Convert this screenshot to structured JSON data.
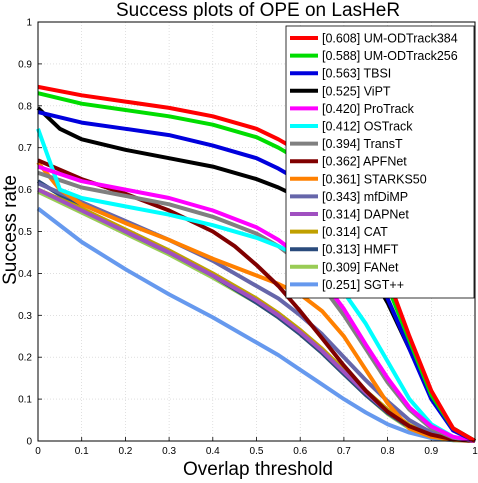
{
  "chart_data": {
    "type": "line",
    "title": "Success plots of OPE on LasHeR",
    "xlabel": "Overlap threshold",
    "ylabel": "Success rate",
    "xlim": [
      0,
      1
    ],
    "ylim": [
      0,
      1
    ],
    "xticks": [
      "0",
      "0.1",
      "0.2",
      "0.3",
      "0.4",
      "0.5",
      "0.6",
      "0.7",
      "0.8",
      "0.9",
      "1"
    ],
    "yticks": [
      "0",
      "0.1",
      "0.2",
      "0.3",
      "0.4",
      "0.5",
      "0.6",
      "0.7",
      "0.8",
      "0.9",
      "1"
    ],
    "grid": true,
    "legend_position": "top-right",
    "series": [
      {
        "name": "[0.608] UM-ODTrack384",
        "color": "#ff0000",
        "x": [
          0,
          0.1,
          0.2,
          0.3,
          0.4,
          0.5,
          0.55,
          0.6,
          0.65,
          0.7,
          0.75,
          0.8,
          0.85,
          0.9,
          0.95,
          1
        ],
        "y": [
          0.845,
          0.825,
          0.81,
          0.795,
          0.775,
          0.745,
          0.72,
          0.69,
          0.645,
          0.585,
          0.5,
          0.39,
          0.25,
          0.12,
          0.03,
          0
        ]
      },
      {
        "name": "[0.588] UM-ODTrack256",
        "color": "#00dd00",
        "x": [
          0,
          0.1,
          0.2,
          0.3,
          0.4,
          0.5,
          0.55,
          0.6,
          0.65,
          0.7,
          0.75,
          0.8,
          0.85,
          0.9,
          0.95,
          1
        ],
        "y": [
          0.83,
          0.805,
          0.79,
          0.775,
          0.755,
          0.725,
          0.7,
          0.67,
          0.625,
          0.565,
          0.48,
          0.37,
          0.24,
          0.11,
          0.03,
          0
        ]
      },
      {
        "name": "[0.563] TBSI",
        "color": "#0000dd",
        "x": [
          0,
          0.1,
          0.2,
          0.3,
          0.4,
          0.5,
          0.55,
          0.6,
          0.65,
          0.7,
          0.75,
          0.8,
          0.85,
          0.9,
          0.95,
          1
        ],
        "y": [
          0.785,
          0.76,
          0.745,
          0.73,
          0.705,
          0.675,
          0.65,
          0.62,
          0.575,
          0.52,
          0.445,
          0.34,
          0.22,
          0.1,
          0.025,
          0
        ]
      },
      {
        "name": "[0.525] ViPT",
        "color": "#000000",
        "x": [
          0,
          0.05,
          0.1,
          0.2,
          0.3,
          0.4,
          0.5,
          0.55,
          0.6,
          0.65,
          0.7,
          0.75,
          0.8,
          0.85,
          0.9,
          0.95,
          1
        ],
        "y": [
          0.795,
          0.745,
          0.72,
          0.695,
          0.675,
          0.655,
          0.625,
          0.605,
          0.58,
          0.545,
          0.49,
          0.42,
          0.33,
          0.22,
          0.11,
          0.03,
          0
        ]
      },
      {
        "name": "[0.420] ProTrack",
        "color": "#ff00ff",
        "x": [
          0,
          0.1,
          0.2,
          0.3,
          0.4,
          0.5,
          0.55,
          0.6,
          0.65,
          0.7,
          0.75,
          0.8,
          0.85,
          0.9,
          0.95,
          1
        ],
        "y": [
          0.655,
          0.62,
          0.6,
          0.58,
          0.55,
          0.51,
          0.48,
          0.44,
          0.385,
          0.315,
          0.23,
          0.15,
          0.08,
          0.035,
          0.01,
          0
        ]
      },
      {
        "name": "[0.412] OSTrack",
        "color": "#00ffff",
        "x": [
          0,
          0.05,
          0.1,
          0.2,
          0.3,
          0.4,
          0.5,
          0.55,
          0.6,
          0.65,
          0.7,
          0.75,
          0.8,
          0.85,
          0.9,
          0.95,
          1
        ],
        "y": [
          0.745,
          0.6,
          0.58,
          0.56,
          0.54,
          0.515,
          0.485,
          0.465,
          0.44,
          0.405,
          0.355,
          0.28,
          0.19,
          0.1,
          0.04,
          0.01,
          0
        ]
      },
      {
        "name": "[0.394] TransT",
        "color": "#808080",
        "x": [
          0,
          0.1,
          0.2,
          0.3,
          0.4,
          0.5,
          0.55,
          0.6,
          0.65,
          0.7,
          0.75,
          0.8,
          0.85,
          0.9,
          0.95,
          1
        ],
        "y": [
          0.64,
          0.605,
          0.585,
          0.565,
          0.535,
          0.495,
          0.465,
          0.425,
          0.37,
          0.3,
          0.22,
          0.14,
          0.075,
          0.03,
          0.008,
          0
        ]
      },
      {
        "name": "[0.362] APFNet",
        "color": "#800000",
        "x": [
          0,
          0.1,
          0.2,
          0.3,
          0.4,
          0.45,
          0.5,
          0.55,
          0.6,
          0.65,
          0.7,
          0.75,
          0.8,
          0.85,
          0.9,
          0.95,
          1
        ],
        "y": [
          0.67,
          0.625,
          0.59,
          0.55,
          0.5,
          0.465,
          0.42,
          0.37,
          0.31,
          0.245,
          0.18,
          0.12,
          0.07,
          0.035,
          0.015,
          0.004,
          0
        ]
      },
      {
        "name": "[0.361] STARKS50",
        "color": "#ff8000",
        "x": [
          0,
          0.05,
          0.1,
          0.2,
          0.3,
          0.4,
          0.5,
          0.55,
          0.6,
          0.65,
          0.7,
          0.75,
          0.8,
          0.85,
          0.9,
          0.95,
          1
        ],
        "y": [
          0.665,
          0.6,
          0.565,
          0.52,
          0.48,
          0.435,
          0.395,
          0.375,
          0.35,
          0.31,
          0.25,
          0.17,
          0.09,
          0.03,
          0.01,
          0.003,
          0
        ]
      },
      {
        "name": "[0.343] mfDiMP",
        "color": "#6666aa",
        "x": [
          0,
          0.1,
          0.2,
          0.3,
          0.4,
          0.5,
          0.55,
          0.6,
          0.65,
          0.7,
          0.75,
          0.8,
          0.85,
          0.9,
          0.95,
          1
        ],
        "y": [
          0.615,
          0.57,
          0.525,
          0.48,
          0.43,
          0.37,
          0.34,
          0.3,
          0.255,
          0.2,
          0.145,
          0.095,
          0.05,
          0.02,
          0.005,
          0
        ]
      },
      {
        "name": "[0.314] DAPNet",
        "color": "#a050c0",
        "x": [
          0,
          0.1,
          0.2,
          0.3,
          0.4,
          0.5,
          0.55,
          0.6,
          0.65,
          0.7,
          0.75,
          0.8,
          0.85,
          0.9,
          0.95,
          1
        ],
        "y": [
          0.6,
          0.55,
          0.5,
          0.45,
          0.395,
          0.335,
          0.3,
          0.26,
          0.215,
          0.165,
          0.115,
          0.07,
          0.035,
          0.012,
          0.003,
          0
        ]
      },
      {
        "name": "[0.314] CAT",
        "color": "#c0a000",
        "x": [
          0,
          0.1,
          0.2,
          0.3,
          0.4,
          0.5,
          0.55,
          0.6,
          0.65,
          0.7,
          0.75,
          0.8,
          0.85,
          0.9,
          0.95,
          1
        ],
        "y": [
          0.6,
          0.555,
          0.505,
          0.455,
          0.4,
          0.34,
          0.305,
          0.265,
          0.22,
          0.17,
          0.12,
          0.075,
          0.038,
          0.014,
          0.004,
          0
        ]
      },
      {
        "name": "[0.313] HMFT",
        "color": "#2a4b7c",
        "x": [
          0,
          0.1,
          0.2,
          0.3,
          0.4,
          0.5,
          0.55,
          0.6,
          0.65,
          0.7,
          0.75,
          0.8,
          0.85,
          0.9,
          0.95,
          1
        ],
        "y": [
          0.62,
          0.555,
          0.5,
          0.45,
          0.395,
          0.33,
          0.295,
          0.255,
          0.21,
          0.16,
          0.11,
          0.067,
          0.033,
          0.012,
          0.003,
          0
        ]
      },
      {
        "name": "[0.309] FANet",
        "color": "#99cc55",
        "x": [
          0,
          0.1,
          0.2,
          0.3,
          0.4,
          0.5,
          0.55,
          0.6,
          0.65,
          0.7,
          0.75,
          0.8,
          0.85,
          0.9,
          0.95,
          1
        ],
        "y": [
          0.595,
          0.545,
          0.495,
          0.445,
          0.39,
          0.33,
          0.295,
          0.255,
          0.21,
          0.16,
          0.11,
          0.065,
          0.03,
          0.01,
          0.002,
          0
        ]
      },
      {
        "name": "[0.251] SGT++",
        "color": "#6699ee",
        "x": [
          0,
          0.1,
          0.2,
          0.3,
          0.4,
          0.5,
          0.55,
          0.6,
          0.65,
          0.7,
          0.75,
          0.8,
          0.85,
          0.9,
          0.95,
          1
        ],
        "y": [
          0.555,
          0.475,
          0.41,
          0.35,
          0.295,
          0.235,
          0.205,
          0.17,
          0.135,
          0.1,
          0.068,
          0.04,
          0.02,
          0.007,
          0.002,
          0
        ]
      }
    ]
  }
}
